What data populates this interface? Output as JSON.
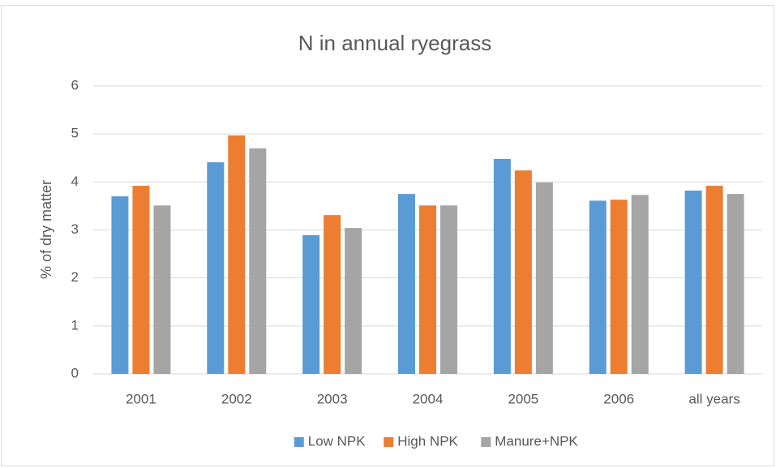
{
  "chart_data": {
    "type": "bar",
    "title": "N in annual ryegrass",
    "y_label": "% of dry matter",
    "categories": [
      "2001",
      "2002",
      "2003",
      "2004",
      "2005",
      "2006",
      "all years"
    ],
    "series": [
      {
        "name": "Low NPK",
        "color": "#5b9bd5",
        "values": [
          3.7,
          4.41,
          2.89,
          3.75,
          4.48,
          3.61,
          3.82
        ]
      },
      {
        "name": "High NPK",
        "color": "#ed7d31",
        "values": [
          3.92,
          4.97,
          3.31,
          3.51,
          4.24,
          3.63,
          3.92
        ]
      },
      {
        "name": "Manure+NPK",
        "color": "#a5a5a5",
        "values": [
          3.51,
          4.7,
          3.04,
          3.51,
          3.99,
          3.73,
          3.75
        ]
      }
    ],
    "ylim": [
      0,
      6
    ],
    "yticks": [
      0,
      1,
      2,
      3,
      4,
      5,
      6
    ],
    "grid": true,
    "legend": "bottom"
  }
}
